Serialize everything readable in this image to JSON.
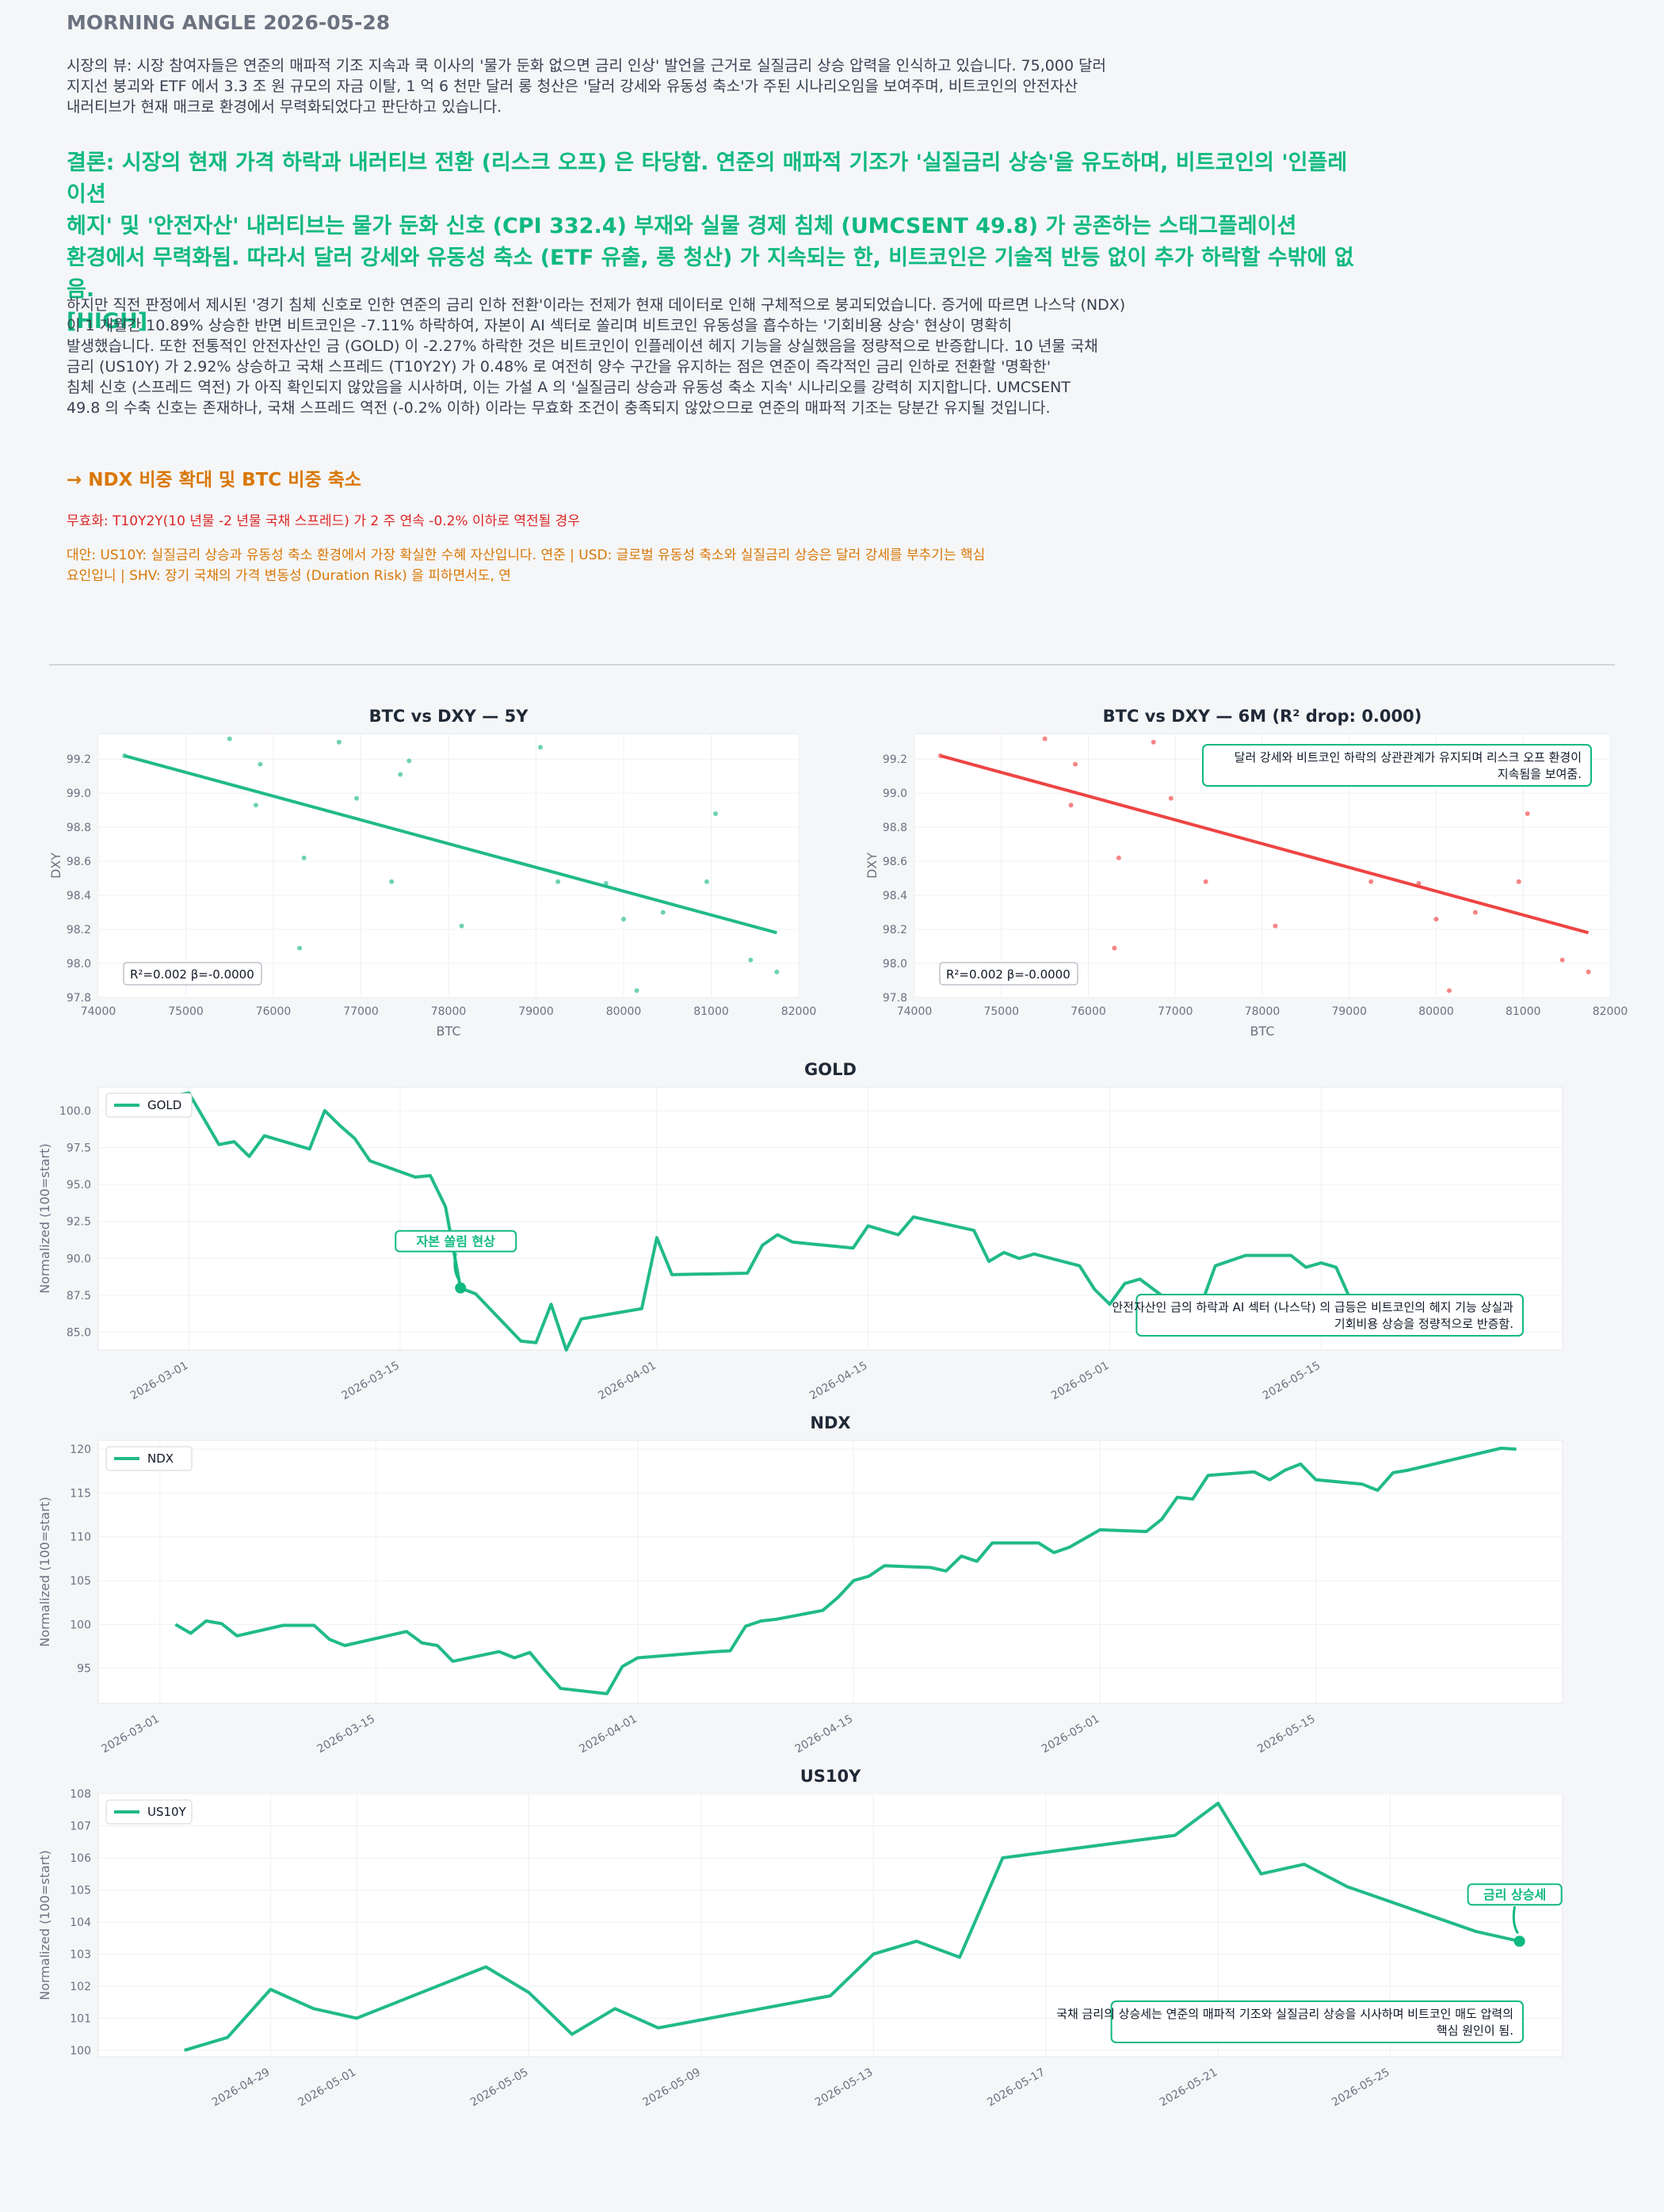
{
  "header": "MORNING ANGLE  2026-05-28",
  "view_lines": [
    "시장의 뷰: 시장 참여자들은 연준의 매파적 기조 지속과 쿡 이사의 '물가 둔화 없으면 금리 인상' 발언을 근거로 실질금리 상승 압력을 인식하고 있습니다. 75,000 달러",
    "지지선 붕괴와 ETF 에서 3.3 조 원 규모의 자금 이탈, 1 억 6 천만 달러 롱 청산은 '달러 강세와 유동성 축소'가 주된 시나리오임을 보여주며, 비트코인의 안전자산",
    "내러티브가 현재 매크로 환경에서 무력화되었다고 판단하고 있습니다."
  ],
  "conclusion_lines": [
    "결론: 시장의 현재 가격 하락과 내러티브 전환 (리스크 오프) 은 타당함. 연준의 매파적 기조가 '실질금리 상승'을 유도하며, 비트코인의 '인플레이션",
    "헤지' 및 '안전자산' 내러티브는 물가 둔화 신호 (CPI 332.4) 부재와 실물 경제 침체 (UMCSENT 49.8) 가 공존하는 스태그플레이션",
    "환경에서 무력화됨. 따라서 달러 강세와 유동성 축소 (ETF 유출, 롱 청산) 가 지속되는 한, 비트코인은 기술적 반등 없이 추가 하락할 수밖에 없음.",
    "[HIGH]"
  ],
  "body_lines": [
    "하지만 직전 판정에서 제시된 '경기 침체 신호로 인한 연준의 금리 인하 전환'이라는 전제가 현재 데이터로 인해 구체적으로 붕괴되었습니다. 증거에 따르면 나스닥 (NDX)",
    "이 1 개월간 10.89% 상승한 반면 비트코인은 -7.11% 하락하여, 자본이 AI 섹터로 쏠리며 비트코인 유동성을 흡수하는 '기회비용 상승' 현상이 명확히",
    "발생했습니다. 또한 전통적인 안전자산인 금 (GOLD) 이 -2.27% 하락한 것은 비트코인이 인플레이션 헤지 기능을 상실했음을 정량적으로 반증합니다. 10 년물 국채",
    "금리 (US10Y) 가 2.92% 상승하고 국채 스프레드 (T10Y2Y) 가 0.48% 로 여전히 양수 구간을 유지하는 점은 연준이 즉각적인 금리 인하로 전환할 '명확한'",
    "침체 신호 (스프레드 역전) 가 아직 확인되지 않았음을 시사하며, 이는 가설 A 의 '실질금리 상승과 유동성 축소 지속' 시나리오를 강력히 지지합니다. UMCSENT",
    "49.8 의 수축 신호는 존재하나, 국채 스프레드 역전 (-0.2% 이하) 이라는 무효화 조건이 충족되지 않았으므로 연준의 매파적 기조는 당분간 유지될 것입니다."
  ],
  "action": "→ NDX 비중 확대 및 BTC 비중 축소",
  "invalidation": "무효화: T10Y2Y(10 년물 -2 년물 국채 스프레드) 가 2 주 연속 -0.2% 이하로 역전될 경우",
  "alternatives_lines": [
    "대안: US10Y: 실질금리 상승과 유동성 축소 환경에서 가장 확실한 수혜 자산입니다. 연준 | USD: 글로벌 유동성 축소와 실질금리 상승은 달러 강세를 부추기는 핵심",
    "요인입니 | SHV: 장기 국채의 가격 변동성 (Duration Risk) 을 피하면서도, 연"
  ],
  "colors": {
    "accent": "#10b981",
    "line": "#21ba8a",
    "red": "#ef4444",
    "orange": "#d97706",
    "invalid": "#dc2626"
  },
  "chart_data": [
    {
      "type": "scatter",
      "title": "BTC vs DXY — 5Y",
      "xlabel": "BTC",
      "ylabel": "DXY",
      "xlim": [
        74000,
        82000
      ],
      "ylim": [
        97.8,
        99.35
      ],
      "xticks": [
        74000,
        75000,
        76000,
        77000,
        78000,
        79000,
        80000,
        81000,
        82000
      ],
      "yticks": [
        97.8,
        98.0,
        98.2,
        98.4,
        98.6,
        98.8,
        99.0,
        99.2
      ],
      "points": [
        [
          74300,
          99.22
        ],
        [
          75500,
          99.32
        ],
        [
          75800,
          98.93
        ],
        [
          75850,
          99.17
        ],
        [
          76300,
          98.09
        ],
        [
          76350,
          98.62
        ],
        [
          76750,
          99.3
        ],
        [
          76950,
          98.97
        ],
        [
          77350,
          98.48
        ],
        [
          77450,
          99.11
        ],
        [
          77550,
          99.19
        ],
        [
          78150,
          98.22
        ],
        [
          79050,
          99.27
        ],
        [
          79250,
          98.48
        ],
        [
          79800,
          98.47
        ],
        [
          80000,
          98.26
        ],
        [
          80150,
          97.84
        ],
        [
          80450,
          98.3
        ],
        [
          80950,
          98.48
        ],
        [
          81050,
          98.88
        ],
        [
          81450,
          98.02
        ],
        [
          81750,
          97.95
        ]
      ],
      "fit": [
        [
          74300,
          99.22
        ],
        [
          81750,
          98.18
        ]
      ],
      "stats": "R²=0.002  β=-0.0000",
      "color": "#21ba8a"
    },
    {
      "type": "scatter",
      "title": "BTC vs DXY — 6M (R² drop: 0.000)",
      "xlabel": "BTC",
      "ylabel": "DXY",
      "xlim": [
        74000,
        82000
      ],
      "ylim": [
        97.8,
        99.35
      ],
      "xticks": [
        74000,
        75000,
        76000,
        77000,
        78000,
        79000,
        80000,
        81000,
        82000
      ],
      "yticks": [
        97.8,
        98.0,
        98.2,
        98.4,
        98.6,
        98.8,
        99.0,
        99.2
      ],
      "points": [
        [
          74300,
          99.22
        ],
        [
          75500,
          99.32
        ],
        [
          75800,
          98.93
        ],
        [
          75850,
          99.17
        ],
        [
          76300,
          98.09
        ],
        [
          76350,
          98.62
        ],
        [
          76750,
          99.3
        ],
        [
          76950,
          98.97
        ],
        [
          77350,
          98.48
        ],
        [
          78150,
          98.22
        ],
        [
          79250,
          98.48
        ],
        [
          79800,
          98.47
        ],
        [
          80000,
          98.26
        ],
        [
          80150,
          97.84
        ],
        [
          80450,
          98.3
        ],
        [
          80950,
          98.48
        ],
        [
          81050,
          98.88
        ],
        [
          81450,
          98.02
        ],
        [
          81750,
          97.95
        ]
      ],
      "fit": [
        [
          74300,
          99.22
        ],
        [
          81750,
          98.18
        ]
      ],
      "stats": "R²=0.002  β=-0.0000",
      "annotation": [
        "달러 강세와 비트코인 하락의 상관관계가 유지되며 리스크 오프 환경이",
        "지속됨을 보여줌."
      ],
      "color": "#ef4444"
    },
    {
      "type": "line",
      "title": "GOLD",
      "series_name": "GOLD",
      "ylabel": "Normalized (100=start)",
      "xlim": [
        "2026-02-23",
        "2026-05-31"
      ],
      "ylim": [
        83.8,
        101.6
      ],
      "xticks": [
        "2026-03-01",
        "2026-03-15",
        "2026-04-01",
        "2026-04-15",
        "2026-05-01",
        "2026-05-15"
      ],
      "yticks": [
        85.0,
        87.5,
        90.0,
        92.5,
        95.0,
        97.5,
        100.0
      ],
      "points": [
        [
          "2026-02-26",
          100.6
        ],
        [
          "2026-03-01",
          101.2
        ],
        [
          "2026-03-03",
          97.7
        ],
        [
          "2026-03-04",
          97.9
        ],
        [
          "2026-03-05",
          96.9
        ],
        [
          "2026-03-06",
          98.3
        ],
        [
          "2026-03-09",
          97.4
        ],
        [
          "2026-03-10",
          100.0
        ],
        [
          "2026-03-11",
          99.0
        ],
        [
          "2026-03-12",
          98.1
        ],
        [
          "2026-03-13",
          96.6
        ],
        [
          "2026-03-16",
          95.5
        ],
        [
          "2026-03-17",
          95.6
        ],
        [
          "2026-03-18",
          93.5
        ],
        [
          "2026-03-19",
          88.0
        ],
        [
          "2026-03-20",
          87.6
        ],
        [
          "2026-03-23",
          84.4
        ],
        [
          "2026-03-24",
          84.3
        ],
        [
          "2026-03-25",
          86.9
        ],
        [
          "2026-03-26",
          83.8
        ],
        [
          "2026-03-27",
          85.9
        ],
        [
          "2026-03-31",
          86.6
        ],
        [
          "2026-04-01",
          91.4
        ],
        [
          "2026-04-02",
          88.9
        ],
        [
          "2026-04-07",
          89.0
        ],
        [
          "2026-04-08",
          90.9
        ],
        [
          "2026-04-09",
          91.6
        ],
        [
          "2026-04-10",
          91.1
        ],
        [
          "2026-04-14",
          90.7
        ],
        [
          "2026-04-15",
          92.2
        ],
        [
          "2026-04-16",
          91.9
        ],
        [
          "2026-04-17",
          91.6
        ],
        [
          "2026-04-18",
          92.8
        ],
        [
          "2026-04-22",
          91.9
        ],
        [
          "2026-04-23",
          89.8
        ],
        [
          "2026-04-24",
          90.4
        ],
        [
          "2026-04-25",
          90.0
        ],
        [
          "2026-04-26",
          90.3
        ],
        [
          "2026-04-29",
          89.5
        ],
        [
          "2026-04-30",
          87.9
        ],
        [
          "2026-05-01",
          86.9
        ],
        [
          "2026-05-02",
          88.3
        ],
        [
          "2026-05-03",
          88.6
        ],
        [
          "2026-05-06",
          86.3
        ],
        [
          "2026-05-07",
          86.7
        ],
        [
          "2026-05-08",
          89.5
        ],
        [
          "2026-05-10",
          90.2
        ],
        [
          "2026-05-13",
          90.2
        ],
        [
          "2026-05-14",
          89.4
        ],
        [
          "2026-05-15",
          89.7
        ],
        [
          "2026-05-16",
          89.4
        ],
        [
          "2026-05-17",
          87.1
        ],
        [
          "2026-05-20",
          87.0
        ],
        [
          "2026-05-21",
          86.2
        ],
        [
          "2026-05-22",
          86.7
        ],
        [
          "2026-05-23",
          86.8
        ],
        [
          "2026-05-24",
          86.3
        ]
      ],
      "marker": [
        "2026-03-19",
        88.0
      ],
      "marker_label": "자본 쏠림 현상",
      "annotation": [
        "안전자산인 금의 하락과 AI 섹터 (나스닥) 의 급등은 비트코인의 헤지 기능 상실과",
        "기회비용 상승을 정량적으로 반증함."
      ],
      "legend": "upper-left"
    },
    {
      "type": "line",
      "title": "NDX",
      "series_name": "NDX",
      "ylabel": "Normalized (100=start)",
      "xlim": [
        "2026-02-25",
        "2026-05-31"
      ],
      "ylim": [
        91.0,
        121.0
      ],
      "xticks": [
        "2026-03-01",
        "2026-03-15",
        "2026-04-01",
        "2026-04-15",
        "2026-05-01",
        "2026-05-15"
      ],
      "yticks": [
        95,
        100,
        105,
        110,
        115,
        120
      ],
      "points": [
        [
          "2026-03-02",
          100.0
        ],
        [
          "2026-03-03",
          99.0
        ],
        [
          "2026-03-04",
          100.4
        ],
        [
          "2026-03-05",
          100.1
        ],
        [
          "2026-03-06",
          98.7
        ],
        [
          "2026-03-09",
          99.9
        ],
        [
          "2026-03-11",
          99.9
        ],
        [
          "2026-03-12",
          98.3
        ],
        [
          "2026-03-13",
          97.6
        ],
        [
          "2026-03-17",
          99.2
        ],
        [
          "2026-03-18",
          97.9
        ],
        [
          "2026-03-19",
          97.6
        ],
        [
          "2026-03-20",
          95.8
        ],
        [
          "2026-03-23",
          96.9
        ],
        [
          "2026-03-24",
          96.2
        ],
        [
          "2026-03-25",
          96.8
        ],
        [
          "2026-03-26",
          94.7
        ],
        [
          "2026-03-27",
          92.7
        ],
        [
          "2026-03-30",
          92.1
        ],
        [
          "2026-03-31",
          95.2
        ],
        [
          "2026-04-01",
          96.2
        ],
        [
          "2026-04-06",
          96.9
        ],
        [
          "2026-04-07",
          97.0
        ],
        [
          "2026-04-08",
          99.8
        ],
        [
          "2026-04-09",
          100.4
        ],
        [
          "2026-04-10",
          100.6
        ],
        [
          "2026-04-13",
          101.6
        ],
        [
          "2026-04-14",
          103.1
        ],
        [
          "2026-04-15",
          105.0
        ],
        [
          "2026-04-16",
          105.5
        ],
        [
          "2026-04-17",
          106.7
        ],
        [
          "2026-04-20",
          106.5
        ],
        [
          "2026-04-21",
          106.1
        ],
        [
          "2026-04-22",
          107.8
        ],
        [
          "2026-04-23",
          107.2
        ],
        [
          "2026-04-24",
          109.3
        ],
        [
          "2026-04-27",
          109.3
        ],
        [
          "2026-04-28",
          108.2
        ],
        [
          "2026-04-29",
          108.8
        ],
        [
          "2026-05-01",
          110.8
        ],
        [
          "2026-05-04",
          110.6
        ],
        [
          "2026-05-05",
          112.0
        ],
        [
          "2026-05-06",
          114.5
        ],
        [
          "2026-05-07",
          114.3
        ],
        [
          "2026-05-08",
          117.0
        ],
        [
          "2026-05-11",
          117.4
        ],
        [
          "2026-05-12",
          116.5
        ],
        [
          "2026-05-13",
          117.6
        ],
        [
          "2026-05-14",
          118.3
        ],
        [
          "2026-05-15",
          116.5
        ],
        [
          "2026-05-18",
          116.0
        ],
        [
          "2026-05-19",
          115.3
        ],
        [
          "2026-05-20",
          117.3
        ],
        [
          "2026-05-21",
          117.6
        ],
        [
          "2026-05-27",
          120.1
        ],
        [
          "2026-05-28",
          120.0
        ]
      ],
      "legend": "upper-left"
    },
    {
      "type": "line",
      "title": "US10Y",
      "series_name": "US10Y",
      "ylabel": "Normalized (100=start)",
      "xlim": [
        "2026-04-25",
        "2026-05-29"
      ],
      "ylim": [
        99.8,
        108.0
      ],
      "xticks": [
        "2026-04-29",
        "2026-05-01",
        "2026-05-05",
        "2026-05-09",
        "2026-05-13",
        "2026-05-17",
        "2026-05-21",
        "2026-05-25"
      ],
      "yticks": [
        100,
        101,
        102,
        103,
        104,
        105,
        106,
        107,
        108
      ],
      "points": [
        [
          "2026-04-27",
          100.0
        ],
        [
          "2026-04-28",
          100.4
        ],
        [
          "2026-04-29",
          101.9
        ],
        [
          "2026-04-30",
          101.3
        ],
        [
          "2026-05-01",
          101.0
        ],
        [
          "2026-05-04",
          102.6
        ],
        [
          "2026-05-05",
          101.8
        ],
        [
          "2026-05-06",
          100.5
        ],
        [
          "2026-05-07",
          101.3
        ],
        [
          "2026-05-08",
          100.7
        ],
        [
          "2026-05-12",
          101.7
        ],
        [
          "2026-05-13",
          103.0
        ],
        [
          "2026-05-14",
          103.4
        ],
        [
          "2026-05-15",
          102.9
        ],
        [
          "2026-05-16",
          106.0
        ],
        [
          "2026-05-20",
          106.7
        ],
        [
          "2026-05-21",
          107.7
        ],
        [
          "2026-05-22",
          105.5
        ],
        [
          "2026-05-23",
          105.8
        ],
        [
          "2026-05-24",
          105.1
        ],
        [
          "2026-05-27",
          103.7
        ],
        [
          "2026-05-28",
          103.4
        ]
      ],
      "marker": [
        "2026-05-28",
        103.4
      ],
      "marker_label": "금리 상승세",
      "annotation": [
        "국채 금리의 상승세는 연준의 매파적 기조와 실질금리 상승을 시사하며 비트코인 매도 압력의",
        "핵심 원인이 됨."
      ],
      "legend": "upper-left"
    }
  ]
}
